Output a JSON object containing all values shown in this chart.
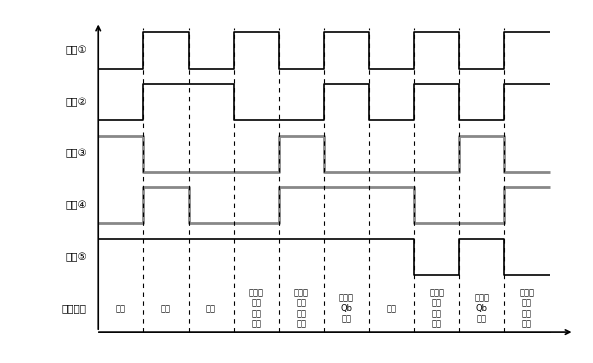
{
  "ylabel_labels": [
    "信号①",
    "信号②",
    "信号③",
    "信号④",
    "信号⑤",
    "故障类型"
  ],
  "fault_labels": [
    "正常",
    "正常",
    "正常",
    "故障：\n驱动\n信号\n丢失",
    "故障：\n制动\n电阻\n开路",
    "故障：\nQb\n开路",
    "正常",
    "故障：\n制动\n电阻\n短路",
    "故障：\nQb\n短路",
    "故障：\n检测\n电路\n故障"
  ],
  "dashed_x": [
    1,
    2,
    3,
    4,
    5,
    6,
    7,
    8,
    9
  ],
  "segment_centers": [
    0.5,
    1.5,
    2.5,
    3.5,
    4.5,
    5.5,
    6.5,
    7.5,
    8.5,
    9.5
  ],
  "signal1_x": [
    0,
    1,
    1,
    2,
    2,
    3,
    3,
    4,
    4,
    5,
    5,
    6,
    6,
    7,
    7,
    8,
    8,
    9,
    9,
    10
  ],
  "signal1_y": [
    0,
    0,
    1,
    1,
    0,
    0,
    1,
    1,
    0,
    0,
    1,
    1,
    0,
    0,
    1,
    1,
    0,
    0,
    1,
    1
  ],
  "signal2_x": [
    0,
    1,
    1,
    3,
    3,
    5,
    5,
    6,
    6,
    7,
    7,
    8,
    8,
    9,
    9,
    10
  ],
  "signal2_y": [
    0,
    0,
    1,
    1,
    0,
    0,
    1,
    1,
    0,
    0,
    1,
    1,
    0,
    0,
    1,
    1
  ],
  "signal3_x": [
    0,
    1,
    1,
    4,
    4,
    5,
    5,
    8,
    8,
    9,
    9,
    10
  ],
  "signal3_y": [
    1,
    1,
    0,
    0,
    1,
    1,
    0,
    0,
    1,
    1,
    0,
    0
  ],
  "signal4_x": [
    0,
    1,
    1,
    2,
    2,
    4,
    4,
    7,
    7,
    9,
    9,
    10
  ],
  "signal4_y": [
    0,
    0,
    1,
    1,
    0,
    0,
    1,
    1,
    0,
    0,
    1,
    1
  ],
  "signal5_x": [
    0,
    7,
    7,
    8,
    8,
    9,
    9,
    10
  ],
  "signal5_y": [
    1,
    1,
    0,
    0,
    1,
    1,
    0,
    0
  ],
  "sig_colors": [
    "#000000",
    "#000000",
    "#888888",
    "#888888",
    "#000000"
  ],
  "sig_lws": [
    1.2,
    1.2,
    2.0,
    2.0,
    1.2
  ],
  "background_color": "#ffffff"
}
